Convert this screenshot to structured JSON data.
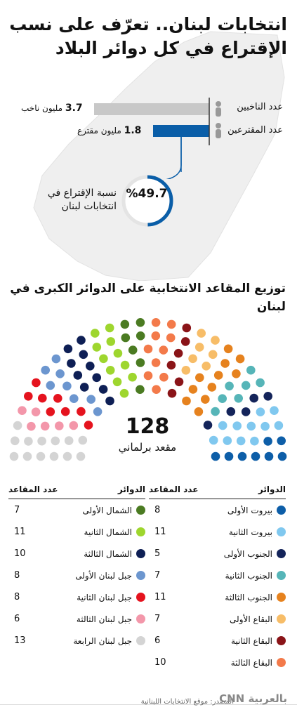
{
  "title": "انتخابات لبنان.. تعرّف على نسب الإقتراع في كل دوائر البلاد",
  "voters": {
    "label": "عدد الناخبين",
    "value": "3.7",
    "unit": "مليون ناخب"
  },
  "participants": {
    "label": "عدد المقترعين",
    "value": "1.8",
    "unit": "مليون مقترع"
  },
  "turnout": {
    "value": 49.7,
    "text": "%49.7",
    "label": "نسبة الإقتراع في انتخابات لبنان"
  },
  "seats_title": "توزيع المقاعد الانتخابية على الدوائر الكبرى في لبنان",
  "total": {
    "value": "128",
    "label": "مقعد برلماني"
  },
  "table_headers": {
    "district": "الدوائر",
    "seats": "عدد المقاعد"
  },
  "colors": {
    "voters_bar": "#c8c8c8",
    "participants_bar": "#0a5ea8",
    "ring": "#0a5ea8"
  },
  "chart_data": {
    "type": "parliament",
    "title": "توزيع المقاعد الانتخابية على الدوائر الكبرى في لبنان",
    "total": 128,
    "districts": [
      {
        "name": "بيروت الأولى",
        "seats": 8,
        "color": "#0d5ea8"
      },
      {
        "name": "بيروت الثانية",
        "seats": 11,
        "color": "#80c8ef"
      },
      {
        "name": "الجنوب الأولى",
        "seats": 5,
        "color": "#14245a"
      },
      {
        "name": "الجنوب الثانية",
        "seats": 7,
        "color": "#56b5b8"
      },
      {
        "name": "الجنوب الثالثة",
        "seats": 11,
        "color": "#e6821e"
      },
      {
        "name": "البقاع الأولى",
        "seats": 7,
        "color": "#f7bd68"
      },
      {
        "name": "البقاع الثانية",
        "seats": 6,
        "color": "#8a1418"
      },
      {
        "name": "البقاع الثالثة",
        "seats": 10,
        "color": "#f37a4a"
      },
      {
        "name": "الشمال الأولى",
        "seats": 7,
        "color": "#4b7b22"
      },
      {
        "name": "الشمال الثانية",
        "seats": 11,
        "color": "#9ed62e"
      },
      {
        "name": "الشمال الثالثة",
        "seats": 10,
        "color": "#0e1f55"
      },
      {
        "name": "جبل لبنان الأولى",
        "seats": 8,
        "color": "#6c96cf"
      },
      {
        "name": "جبل لبنان الثانية",
        "seats": 8,
        "color": "#e5131e"
      },
      {
        "name": "جبل لبنان الثالثة",
        "seats": 6,
        "color": "#f397aa"
      },
      {
        "name": "جبل لبنان الرابعة",
        "seats": 13,
        "color": "#d4d4d4"
      }
    ]
  },
  "source": "المصدر: موقع الانتخابات اللبنانية",
  "logo": "CNN بالعربية"
}
